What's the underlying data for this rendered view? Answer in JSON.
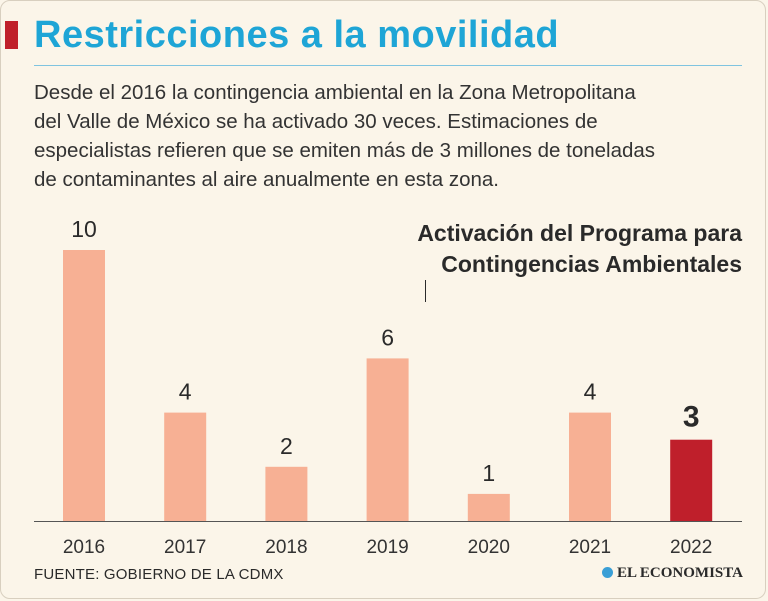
{
  "header": {
    "title": "Restricciones a la movilidad",
    "description_lines": [
      "Desde el 2016 la contingencia ambiental en la Zona Metropolitana",
      "del Valle de México se ha activado 30 veces. Estimaciones de",
      "especialistas refieren que se emiten más de 3 millones de toneladas",
      "de contaminantes al aire anualmente en esta zona."
    ]
  },
  "chart_data": {
    "type": "bar",
    "title_lines": [
      "Activación del Programa para",
      "Contingencias Ambientales"
    ],
    "categories": [
      "2016",
      "2017",
      "2018",
      "2019",
      "2020",
      "2021",
      "2022"
    ],
    "values": [
      10,
      4,
      2,
      6,
      1,
      4,
      3
    ],
    "highlight_index": 6,
    "ylim": [
      0,
      10
    ],
    "grid": false,
    "colors": {
      "bar": "#f7b094",
      "highlight": "#bf1f2b"
    }
  },
  "footer": {
    "source": "FUENTE: GOBIERNO DE LA CDMX",
    "brand": "EL ECONOMISTA",
    "brand_icon": "globe-icon"
  }
}
